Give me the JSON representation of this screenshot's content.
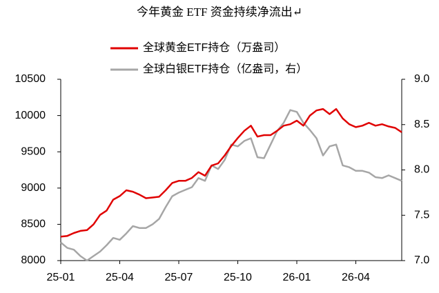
{
  "chart_data": {
    "type": "line",
    "title": "今年黄金 ETF 资金持续净流出↵",
    "categories": [
      "25-01",
      null,
      null,
      null,
      null,
      null,
      null,
      null,
      null,
      "25-04",
      null,
      null,
      null,
      null,
      null,
      null,
      null,
      null,
      "25-07",
      null,
      null,
      null,
      null,
      null,
      null,
      null,
      null,
      "25-10",
      null,
      null,
      null,
      null,
      null,
      null,
      null,
      null,
      "26-01",
      null,
      null,
      null,
      null,
      null,
      null,
      null,
      null,
      "26-04",
      null,
      null,
      null,
      null,
      null,
      null,
      null
    ],
    "series": [
      {
        "name": "全球黄金ETF持仓（万盎司）",
        "color": "#e00000",
        "values": [
          8330,
          8340,
          8380,
          8410,
          8420,
          8500,
          8630,
          8690,
          8840,
          8890,
          8970,
          8950,
          8910,
          8860,
          8870,
          8880,
          8970,
          9070,
          9100,
          9100,
          9140,
          9220,
          9170,
          9310,
          9340,
          9450,
          9580,
          9690,
          9790,
          9860,
          9710,
          9730,
          9730,
          9790,
          9860,
          9880,
          9930,
          9860,
          10000,
          10070,
          10090,
          10020,
          10090,
          9960,
          9880,
          9840,
          9860,
          9900,
          9860,
          9880,
          9850,
          9830,
          9770
        ]
      },
      {
        "name": "全球白银ETF持仓（亿盎司，右）",
        "color": "#a6a6a6",
        "axis": "y2",
        "values": [
          7.2,
          7.14,
          7.12,
          7.05,
          7.0,
          7.05,
          7.1,
          7.17,
          7.25,
          7.23,
          7.3,
          7.38,
          7.36,
          7.36,
          7.4,
          7.46,
          7.59,
          7.71,
          7.75,
          7.78,
          7.81,
          7.91,
          7.88,
          8.05,
          8.01,
          8.11,
          8.28,
          8.26,
          8.32,
          8.35,
          8.14,
          8.13,
          8.28,
          8.43,
          8.52,
          8.66,
          8.64,
          8.52,
          8.44,
          8.35,
          8.16,
          8.26,
          8.28,
          8.05,
          8.03,
          7.99,
          7.99,
          7.97,
          7.92,
          7.91,
          7.94,
          7.91,
          7.88
        ]
      }
    ],
    "ylim": [
      8000,
      10500
    ],
    "yticks": [
      8000,
      8500,
      9000,
      9500,
      10000,
      10500
    ],
    "y2lim": [
      7,
      9
    ],
    "y2ticks": [
      {
        "value": 7,
        "label": "7.0"
      },
      7.5,
      {
        "value": 8,
        "label": "8.0"
      },
      8.5,
      {
        "value": 9,
        "label": "9.0"
      }
    ],
    "grid": false
  }
}
